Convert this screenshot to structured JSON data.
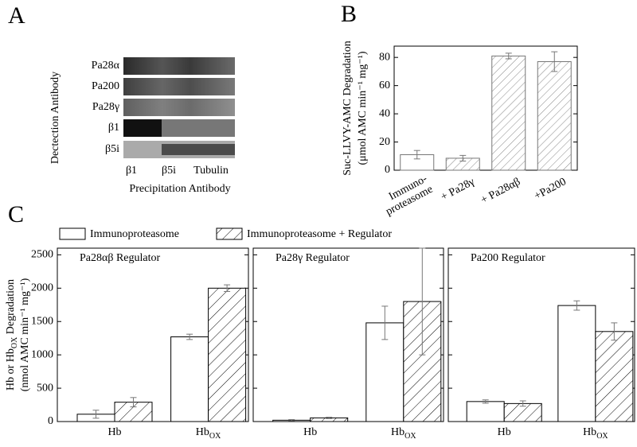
{
  "panel_labels": [
    "A",
    "B",
    "C"
  ],
  "panel_a": {
    "row_labels": [
      "Pa28α",
      "Pa200",
      "Pa28γ",
      "β1",
      "β5i"
    ],
    "column_labels": [
      "β1",
      "β5i",
      "Tubulin"
    ],
    "ylabel": "Dectection Antibody",
    "xlabel": "Precipitation Antibody"
  },
  "chart_data": [
    {
      "type": "bar",
      "categories": [
        "Immuno-\nproteasome",
        "+ Pa28γ",
        "+ Pa28αβ",
        "+Pa200"
      ],
      "values": [
        11,
        8.5,
        81,
        77
      ],
      "errors": [
        3,
        2,
        2,
        7
      ],
      "fills": [
        "open",
        "hatched",
        "hatched",
        "hatched"
      ],
      "ylim": [
        0,
        88
      ],
      "yticks": [
        0,
        20,
        40,
        60,
        80
      ],
      "ylabel": "Suc-LLVY-AMC Degradation",
      "ylabel2": "(μmol AMC min⁻¹ mg⁻¹)"
    },
    {
      "type": "grouped-bar",
      "title": "Pa28αβ Regulator",
      "legend": true,
      "categories": [
        "Hb",
        "Hb"
      ],
      "category_subscripts": [
        null,
        "OX"
      ],
      "series": [
        {
          "name": "Immunoproteasome",
          "fill": "open",
          "values": [
            110,
            1270
          ],
          "errors": [
            60,
            40
          ]
        },
        {
          "name": "Immunoproteasome + Regulator",
          "fill": "hatched",
          "values": [
            290,
            2000
          ],
          "errors": [
            70,
            50
          ]
        }
      ],
      "ylim": [
        0,
        2600
      ],
      "yticks": [
        0,
        500,
        1000,
        1500,
        2000,
        2500
      ],
      "ytick_labels": true,
      "ylabel": {
        "pre": "Hb or Hb",
        "sub": "OX",
        "post": " Degradation"
      },
      "ylabel2": "(nmol AMC min⁻¹ mg⁻¹)"
    },
    {
      "type": "grouped-bar",
      "title": "Pa28γ Regulator",
      "categories": [
        "Hb",
        "Hb"
      ],
      "category_subscripts": [
        null,
        "OX"
      ],
      "series": [
        {
          "fill": "open",
          "values": [
            20,
            1480
          ],
          "errors": [
            10,
            250
          ]
        },
        {
          "fill": "hatched",
          "values": [
            55,
            1800
          ],
          "errors": [
            10,
            800
          ]
        }
      ],
      "ylim": [
        0,
        2600
      ],
      "yticks": [
        0,
        500,
        1000,
        1500,
        2000,
        2500
      ],
      "ytick_labels": false
    },
    {
      "type": "grouped-bar",
      "title": "Pa200 Regulator",
      "categories": [
        "Hb",
        "Hb"
      ],
      "category_subscripts": [
        null,
        "OX"
      ],
      "series": [
        {
          "fill": "open",
          "values": [
            300,
            1740
          ],
          "errors": [
            25,
            70
          ]
        },
        {
          "fill": "hatched",
          "values": [
            270,
            1350
          ],
          "errors": [
            40,
            130
          ]
        }
      ],
      "ylim": [
        0,
        2600
      ],
      "yticks": [
        0,
        500,
        1000,
        1500,
        2000,
        2500
      ],
      "ytick_labels": false
    }
  ]
}
